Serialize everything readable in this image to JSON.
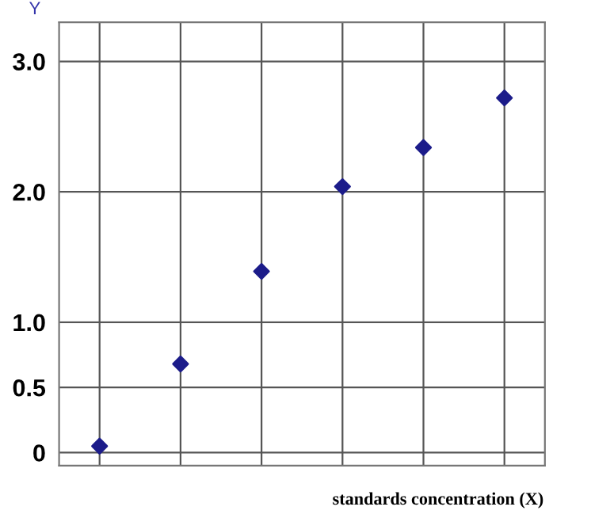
{
  "chart_data": {
    "type": "scatter",
    "xlabel": "standards concentration (X)",
    "ylabel": "Y",
    "categories": [
      null,
      null,
      null,
      null,
      null,
      null
    ],
    "series": [
      {
        "color": "#1c1c8a",
        "values": [
          0.05,
          0.68,
          1.39,
          2.04,
          2.34,
          2.72
        ]
      }
    ],
    "marker": "diamond",
    "grid": true,
    "tick_labels": "y",
    "ylim": [
      -0.1,
      3.3
    ],
    "yticks": [
      {
        "value": 0,
        "label": "0"
      },
      {
        "value": 0.5,
        "label": "0.5"
      },
      {
        "value": 1.0,
        "label": "1.0"
      },
      {
        "value": 2.0,
        "label": "2.0"
      },
      {
        "value": 3.0,
        "label": "3.0"
      }
    ]
  }
}
